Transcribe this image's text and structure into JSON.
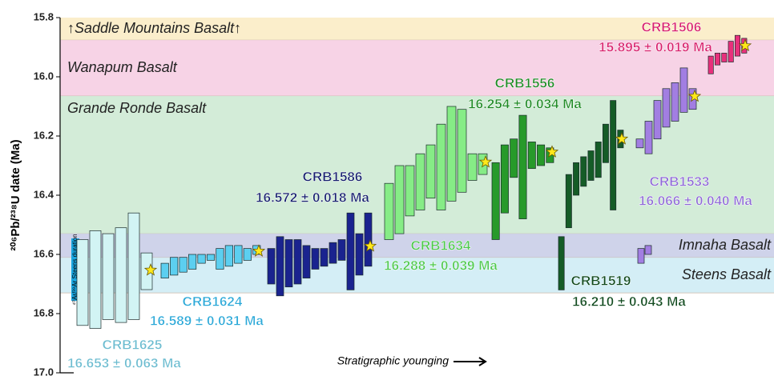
{
  "chart_data": {
    "type": "range",
    "y_label": "²⁰⁶Pb/²³⁸U date (Ma)",
    "x_label": "Stratigraphic younging",
    "ylim": [
      15.8,
      17.0
    ],
    "y_inverted": true,
    "yticks": [
      15.8,
      {
        "value": 16,
        "label": "16.0"
      },
      16.2,
      16.4,
      16.6,
      16.8,
      {
        "value": 17,
        "label": "17.0"
      }
    ],
    "bands": [
      {
        "name": "↑Saddle Mountains Basalt↑",
        "range": [
          15.8,
          15.876
        ],
        "color": "#fbeecb"
      },
      {
        "name": "Wanapum Basalt",
        "range": [
          15.876,
          16.065
        ],
        "color": "#f7d3e6"
      },
      {
        "name": "Grande Ronde Basalt",
        "range": [
          16.065,
          16.53
        ],
        "color": "#d3ecd8"
      },
      {
        "name": "Imnaha Basalt",
        "range": [
          16.53,
          16.611
        ],
        "color": "#cfd3ea"
      },
      {
        "name": "Steens Basalt",
        "range": [
          16.611,
          16.73
        ],
        "color": "#d4eef6"
      }
    ],
    "argon": {
      "label": "⁴⁰Ar/³⁹Ar Steens duration",
      "range": [
        16.546,
        16.757
      ],
      "color": "#1aa6e0"
    },
    "series": [
      {
        "name": "CRB1625",
        "age": 16.653,
        "age_label": "16.653 ± 0.063 Ma",
        "color": "#d2f4f4",
        "label_color": "#6cbcd0",
        "lo": [
          16.55,
          16.52,
          16.53,
          16.51,
          16.46,
          16.595
        ],
        "hi": [
          16.84,
          16.85,
          16.82,
          16.83,
          16.82,
          16.719
        ]
      },
      {
        "name": "CRB1624",
        "age": 16.589,
        "age_label": "16.589 ± 0.031 Ma",
        "color": "#5ccff0",
        "label_color": "#2aa8d8",
        "lo": [
          16.63,
          16.61,
          16.61,
          16.6,
          16.6,
          16.6,
          16.58,
          16.57,
          16.57,
          16.58,
          16.57
        ],
        "hi": [
          16.68,
          16.67,
          16.66,
          16.65,
          16.63,
          16.62,
          16.65,
          16.64,
          16.63,
          16.62,
          16.6
        ]
      },
      {
        "name": "CRB1586",
        "age": 16.572,
        "age_label": "16.572 ± 0.018 Ma",
        "color": "#1a238f",
        "label_color": "#16206e",
        "lo": [
          16.58,
          16.54,
          16.55,
          16.55,
          16.57,
          16.58,
          16.58,
          16.56,
          16.55,
          16.46,
          16.53,
          16.46
        ],
        "hi": [
          16.7,
          16.74,
          16.71,
          16.7,
          16.68,
          16.65,
          16.64,
          16.63,
          16.62,
          16.72,
          16.67,
          16.64
        ]
      },
      {
        "name": "CRB1634",
        "age": 16.288,
        "age_label": "16.288 ± 0.039 Ma",
        "color": "#86ec86",
        "label_color": "#4cc84c",
        "lo": [
          16.36,
          16.3,
          16.3,
          16.26,
          16.23,
          16.16,
          16.1,
          16.11,
          16.26,
          16.26
        ],
        "hi": [
          16.55,
          16.53,
          16.47,
          16.45,
          16.41,
          16.45,
          16.42,
          16.39,
          16.35,
          16.33
        ]
      },
      {
        "name": "CRB1556",
        "age": 16.254,
        "age_label": "16.254 ± 0.034 Ma",
        "color": "#279a2a",
        "label_color": "#1e8a24",
        "lo": [
          16.29,
          16.23,
          16.21,
          16.13,
          16.22,
          16.23,
          16.24
        ],
        "hi": [
          16.55,
          16.46,
          16.34,
          16.48,
          16.31,
          16.3,
          16.29
        ]
      },
      {
        "name": "CRB1519",
        "age": 16.21,
        "age_label": "16.210 ± 0.043 Ma",
        "color": "#155c27",
        "label_color": "#104a1e",
        "lo": [
          16.54,
          16.33,
          16.29,
          16.27,
          16.25,
          16.22,
          16.16,
          16.08,
          16.18
        ],
        "hi": [
          16.72,
          16.51,
          16.4,
          16.37,
          16.35,
          16.34,
          16.29,
          16.45,
          16.24
        ]
      },
      {
        "name": "CRB1533",
        "age": 16.066,
        "age_label": "16.066 ± 0.040 Ma",
        "color": "#a27ee2",
        "label_color": "#8e6ad6",
        "lo": [
          16.21,
          16.15,
          16.08,
          16.04,
          16.02,
          15.97,
          16.04
        ],
        "hi": [
          16.24,
          16.26,
          16.21,
          16.17,
          16.15,
          16.12,
          16.11
        ],
        "extra_lo": [
          16.58,
          16.57
        ],
        "extra_hi": [
          16.63,
          16.6
        ]
      },
      {
        "name": "CRB1506",
        "age": 15.895,
        "age_label": "15.895 ± 0.019 Ma",
        "color": "#e8307c",
        "label_color": "#d8206c",
        "lo": [
          15.93,
          15.92,
          15.92,
          15.88,
          15.86,
          15.87
        ],
        "hi": [
          15.99,
          15.96,
          15.95,
          15.95,
          15.93,
          15.92
        ]
      }
    ]
  }
}
